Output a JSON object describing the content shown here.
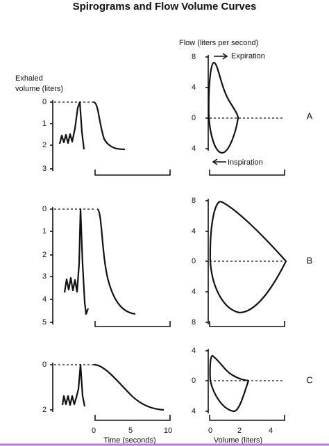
{
  "title": "Spirograms and Flow Volume Curves",
  "volume_axis_label": [
    "Exhaled",
    "volume (liters)"
  ],
  "flow_axis_label": "Flow (liters per second)",
  "expiration": "Expiration",
  "inspiration": "Inspiration",
  "time_axis_label": "Time (seconds)",
  "volume_x_label": "Volume (liters)",
  "panels": [
    {
      "letter": "A",
      "volume_ticks": [
        "0",
        "1",
        "2",
        "3"
      ],
      "flow_ticks": [
        "8",
        "4",
        "0",
        "4"
      ]
    },
    {
      "letter": "B",
      "volume_ticks": [
        "0",
        "1",
        "2",
        "3",
        "4",
        "5"
      ],
      "flow_ticks": [
        "8",
        "4",
        "0",
        "4",
        "8"
      ]
    },
    {
      "letter": "C",
      "volume_ticks": [
        "0",
        "2"
      ],
      "flow_ticks": [
        "4",
        "0",
        "4"
      ]
    }
  ],
  "time_ticks": [
    "0",
    "5",
    "10"
  ],
  "volume_x_ticks": [
    "0",
    "2",
    "4"
  ]
}
